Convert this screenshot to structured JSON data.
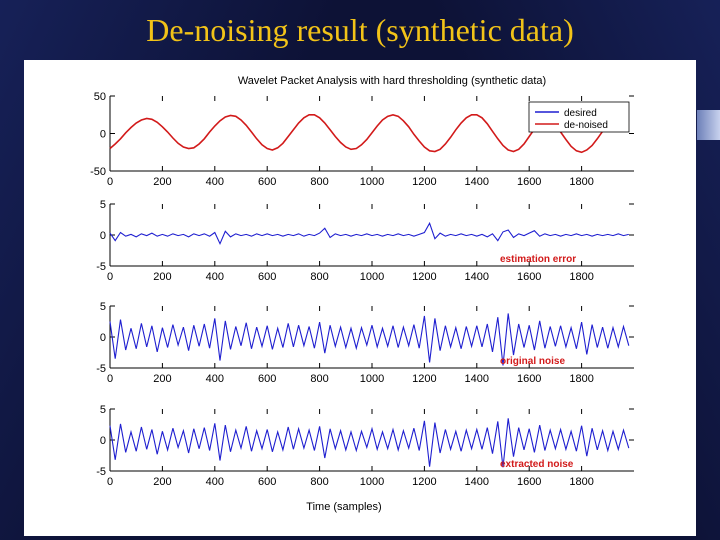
{
  "slide": {
    "title": "De-noising result (synthetic data)",
    "colors": {
      "title": "#f2c318",
      "background": "#0d1236"
    }
  },
  "chart_data": {
    "type": "line",
    "title": "Wavelet Packet Analysis with hard thresholding (synthetic data)",
    "xlabel": "Time (samples)",
    "xlim": [
      0,
      2000
    ],
    "xticks": [
      0,
      200,
      400,
      600,
      800,
      1000,
      1200,
      1400,
      1600,
      1800
    ],
    "panels": [
      {
        "name": "signal",
        "ylim": [
          -50,
          50
        ],
        "yticks": [
          50,
          0,
          -50
        ],
        "label": "",
        "legend": {
          "position": "top-right",
          "entries": [
            {
              "name": "desired",
              "color": "#1f1fd0"
            },
            {
              "name": "de-noised",
              "color": "#d21a1a"
            }
          ]
        },
        "series": [
          {
            "name": "de-noised",
            "color": "#d21a1a",
            "x": [
              0,
              20,
              40,
              60,
              80,
              100,
              120,
              140,
              160,
              180,
              200,
              220,
              240,
              260,
              280,
              300,
              320,
              340,
              360,
              380,
              400,
              420,
              440,
              460,
              480,
              500,
              520,
              540,
              560,
              580,
              600,
              620,
              640,
              660,
              680,
              700,
              720,
              740,
              760,
              780,
              800,
              820,
              840,
              860,
              880,
              900,
              920,
              940,
              960,
              980,
              1000,
              1020,
              1040,
              1060,
              1080,
              1100,
              1120,
              1140,
              1160,
              1180,
              1200,
              1220,
              1240,
              1260,
              1280,
              1300,
              1320,
              1340,
              1360,
              1380,
              1400,
              1420,
              1440,
              1460,
              1480,
              1500,
              1520,
              1540,
              1560,
              1580,
              1600,
              1620,
              1640,
              1660,
              1680,
              1700,
              1720,
              1740,
              1760,
              1780,
              1800,
              1820,
              1840,
              1860,
              1880,
              1900,
              1920,
              1940,
              1960,
              1980
            ],
            "y": [
              -20,
              -14,
              -7,
              1,
              8,
              14,
              18,
              20,
              19,
              15,
              9,
              2,
              -6,
              -13,
              -18,
              -20,
              -19,
              -14,
              -7,
              2,
              10,
              17,
              22,
              24,
              23,
              18,
              11,
              2,
              -7,
              -15,
              -20,
              -22,
              -19,
              -13,
              -4,
              5,
              14,
              21,
              25,
              25,
              21,
              14,
              5,
              -4,
              -12,
              -18,
              -21,
              -20,
              -15,
              -8,
              1,
              10,
              18,
              23,
              25,
              23,
              17,
              9,
              -1,
              -10,
              -18,
              -23,
              -24,
              -21,
              -14,
              -5,
              5,
              14,
              21,
              25,
              25,
              21,
              13,
              3,
              -7,
              -16,
              -22,
              -24,
              -21,
              -14,
              -4,
              6,
              14,
              18,
              17,
              11,
              2,
              -8,
              -17,
              -23,
              -25,
              -22,
              -16,
              -7,
              3,
              12,
              19,
              22,
              21,
              16
            ]
          }
        ]
      },
      {
        "name": "estimation error",
        "ylim": [
          -5,
          5
        ],
        "yticks": [
          5,
          0,
          -5
        ],
        "label": "estimation error",
        "series": [
          {
            "name": "estimation error",
            "color": "#1f1fd0",
            "x": [
              0,
              20,
              40,
              60,
              80,
              100,
              120,
              140,
              160,
              180,
              200,
              220,
              240,
              260,
              280,
              300,
              320,
              340,
              360,
              380,
              400,
              420,
              440,
              460,
              480,
              500,
              520,
              540,
              560,
              580,
              600,
              620,
              640,
              660,
              680,
              700,
              720,
              740,
              760,
              780,
              800,
              820,
              840,
              860,
              880,
              900,
              920,
              940,
              960,
              980,
              1000,
              1020,
              1040,
              1060,
              1080,
              1100,
              1120,
              1140,
              1160,
              1180,
              1200,
              1220,
              1240,
              1260,
              1280,
              1300,
              1320,
              1340,
              1360,
              1380,
              1400,
              1420,
              1440,
              1460,
              1480,
              1500,
              1520,
              1540,
              1560,
              1580,
              1600,
              1620,
              1640,
              1660,
              1680,
              1700,
              1720,
              1740,
              1760,
              1780,
              1800,
              1820,
              1840,
              1860,
              1880,
              1900,
              1920,
              1940,
              1960,
              1980
            ],
            "y": [
              0.3,
              -0.9,
              0.4,
              -0.2,
              0.1,
              -0.3,
              0.2,
              -0.1,
              0.3,
              -0.2,
              0.1,
              -0.2,
              0.2,
              -0.1,
              0.1,
              -0.3,
              0.2,
              -0.1,
              0.2,
              -0.2,
              0.4,
              -1.4,
              0.6,
              -0.3,
              0.2,
              -0.1,
              0.1,
              -0.2,
              0.2,
              -0.1,
              0.2,
              -0.1,
              0.1,
              -0.2,
              0.1,
              -0.1,
              0.2,
              -0.2,
              0.1,
              -0.1,
              0.3,
              1.1,
              -0.4,
              0.2,
              -0.1,
              0.1,
              -0.2,
              0.1,
              -0.1,
              0.2,
              -0.1,
              0.1,
              -0.2,
              0.1,
              -0.1,
              0.2,
              -0.1,
              0.1,
              -0.2,
              0.1,
              0.4,
              1.9,
              -0.6,
              0.3,
              -0.2,
              0.1,
              -0.1,
              0.2,
              -0.1,
              0.1,
              -0.2,
              0.1,
              -0.3,
              0.2,
              -0.9,
              0.5,
              0.8,
              -0.4,
              0.2,
              -0.1,
              0.3,
              0.7,
              -0.2,
              0.2,
              -0.1,
              0.1,
              -0.2,
              0.1,
              -0.1,
              0.2,
              -0.1,
              0.1,
              -0.2,
              0.1,
              -0.1,
              0.1,
              -0.1,
              0.2,
              -0.1,
              0.1
            ]
          }
        ]
      },
      {
        "name": "original noise",
        "ylim": [
          -5,
          5
        ],
        "yticks": [
          5,
          0,
          -5
        ],
        "label": "original noise",
        "series": [
          {
            "name": "original noise",
            "color": "#1f1fd0",
            "x": [
              0,
              20,
              40,
              60,
              80,
              100,
              120,
              140,
              160,
              180,
              200,
              220,
              240,
              260,
              280,
              300,
              320,
              340,
              360,
              380,
              400,
              420,
              440,
              460,
              480,
              500,
              520,
              540,
              560,
              580,
              600,
              620,
              640,
              660,
              680,
              700,
              720,
              740,
              760,
              780,
              800,
              820,
              840,
              860,
              880,
              900,
              920,
              940,
              960,
              980,
              1000,
              1020,
              1040,
              1060,
              1080,
              1100,
              1120,
              1140,
              1160,
              1180,
              1200,
              1220,
              1240,
              1260,
              1280,
              1300,
              1320,
              1340,
              1360,
              1380,
              1400,
              1420,
              1440,
              1460,
              1480,
              1500,
              1520,
              1540,
              1560,
              1580,
              1600,
              1620,
              1640,
              1660,
              1680,
              1700,
              1720,
              1740,
              1760,
              1780,
              1800,
              1820,
              1840,
              1860,
              1880,
              1900,
              1920,
              1940,
              1960,
              1980
            ],
            "y": [
              2.5,
              -3.5,
              2.8,
              -2.1,
              1.4,
              -1.9,
              2.2,
              -1.6,
              1.8,
              -2.4,
              1.5,
              -1.7,
              2.0,
              -1.3,
              1.6,
              -2.2,
              1.9,
              -1.5,
              2.1,
              -1.8,
              3.0,
              -3.8,
              2.6,
              -2.0,
              1.7,
              -1.4,
              2.3,
              -1.9,
              1.6,
              -1.5,
              1.8,
              -2.0,
              1.4,
              -1.7,
              2.2,
              -1.6,
              1.9,
              -1.4,
              1.7,
              -1.8,
              2.4,
              -2.6,
              1.9,
              -1.5,
              1.6,
              -1.7,
              1.4,
              -1.8,
              1.5,
              -1.3,
              1.9,
              -1.6,
              1.4,
              -1.5,
              1.8,
              -1.7,
              1.6,
              -1.4,
              2.0,
              -1.8,
              3.4,
              -4.1,
              3.0,
              -2.2,
              1.8,
              -1.6,
              1.5,
              -1.9,
              1.7,
              -1.5,
              1.8,
              -1.6,
              2.1,
              -2.4,
              3.2,
              -4.6,
              3.8,
              -2.9,
              2.1,
              -1.7,
              1.9,
              -2.1,
              2.6,
              -1.8,
              1.7,
              -1.5,
              1.8,
              -1.6,
              1.5,
              -1.9,
              2.4,
              -2.8,
              2.0,
              -1.7,
              1.6,
              -1.8,
              1.5,
              -1.6,
              1.7,
              -1.4
            ]
          }
        ]
      },
      {
        "name": "extracted noise",
        "ylim": [
          -5,
          5
        ],
        "yticks": [
          5,
          0,
          -5
        ],
        "label": "extracted noise",
        "series": [
          {
            "name": "extracted noise",
            "color": "#1f1fd0",
            "x": [
              0,
              20,
              40,
              60,
              80,
              100,
              120,
              140,
              160,
              180,
              200,
              220,
              240,
              260,
              280,
              300,
              320,
              340,
              360,
              380,
              400,
              420,
              440,
              460,
              480,
              500,
              520,
              540,
              560,
              580,
              600,
              620,
              640,
              660,
              680,
              700,
              720,
              740,
              760,
              780,
              800,
              820,
              840,
              860,
              880,
              900,
              920,
              940,
              960,
              980,
              1000,
              1020,
              1040,
              1060,
              1080,
              1100,
              1120,
              1140,
              1160,
              1180,
              1200,
              1220,
              1240,
              1260,
              1280,
              1300,
              1320,
              1340,
              1360,
              1380,
              1400,
              1420,
              1440,
              1460,
              1480,
              1500,
              1520,
              1540,
              1560,
              1580,
              1600,
              1620,
              1640,
              1660,
              1680,
              1700,
              1720,
              1740,
              1760,
              1780,
              1800,
              1820,
              1840,
              1860,
              1880,
              1900,
              1920,
              1940,
              1960,
              1980
            ],
            "y": [
              2.3,
              -3.2,
              2.6,
              -2.0,
              1.3,
              -1.8,
              2.1,
              -1.5,
              1.7,
              -2.3,
              1.4,
              -1.6,
              1.9,
              -1.2,
              1.5,
              -2.1,
              1.8,
              -1.4,
              2.0,
              -1.7,
              2.7,
              -3.3,
              2.4,
              -1.9,
              1.6,
              -1.3,
              2.2,
              -1.8,
              1.5,
              -1.4,
              1.7,
              -1.9,
              1.3,
              -1.6,
              2.1,
              -1.5,
              1.8,
              -1.3,
              1.6,
              -1.7,
              2.2,
              -2.9,
              1.8,
              -1.4,
              1.5,
              -1.6,
              1.3,
              -1.7,
              1.4,
              -1.2,
              1.8,
              -1.5,
              1.3,
              -1.4,
              1.7,
              -1.6,
              1.5,
              -1.3,
              1.9,
              -1.7,
              3.1,
              -4.3,
              2.8,
              -2.1,
              1.7,
              -1.5,
              1.4,
              -1.8,
              1.6,
              -1.4,
              1.7,
              -1.5,
              2.0,
              -2.2,
              3.0,
              -4.4,
              3.5,
              -2.7,
              2.0,
              -1.6,
              1.8,
              -2.0,
              2.4,
              -1.7,
              1.6,
              -1.4,
              1.7,
              -1.5,
              1.4,
              -1.8,
              2.3,
              -2.6,
              1.9,
              -1.6,
              1.5,
              -1.7,
              1.4,
              -1.5,
              1.6,
              -1.3
            ]
          }
        ]
      }
    ]
  }
}
